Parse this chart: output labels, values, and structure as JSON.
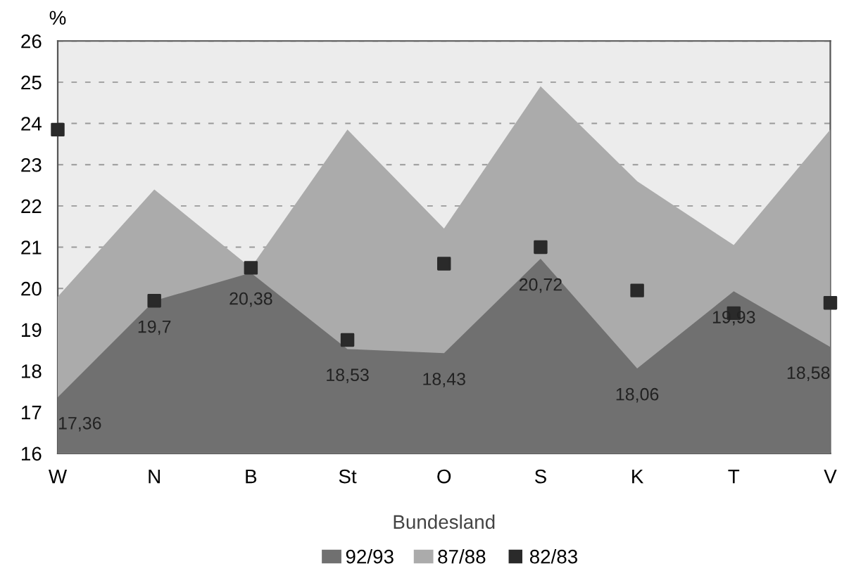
{
  "chart_data": {
    "type": "area",
    "xlabel": "Bundesland",
    "ylabel": "%",
    "categories": [
      "W",
      "N",
      "B",
      "St",
      "O",
      "S",
      "K",
      "T",
      "V"
    ],
    "series": [
      {
        "name": "92/93",
        "color": "#707070",
        "values": [
          17.36,
          19.7,
          20.38,
          18.53,
          18.43,
          20.72,
          18.06,
          19.93,
          18.58
        ],
        "value_labels": [
          "17,36",
          "19,7",
          "20,38",
          "18,53",
          "18,43",
          "20,72",
          "18,06",
          "19,93",
          "18,58"
        ]
      },
      {
        "name": "87/88",
        "color": "#ababab",
        "values": [
          19.8,
          22.4,
          20.5,
          23.85,
          21.45,
          24.9,
          22.6,
          21.05,
          23.85
        ]
      },
      {
        "name": "82/83",
        "type": "scatter",
        "color": "#2a2a2a",
        "marker": "square",
        "values": [
          23.85,
          19.7,
          20.5,
          18.75,
          20.6,
          21.0,
          19.95,
          19.4,
          19.65
        ]
      }
    ],
    "ylim": [
      16,
      26
    ],
    "yticks": [
      16,
      17,
      18,
      19,
      20,
      21,
      22,
      23,
      24,
      25,
      26
    ],
    "grid": "y",
    "legend": "bottom"
  }
}
